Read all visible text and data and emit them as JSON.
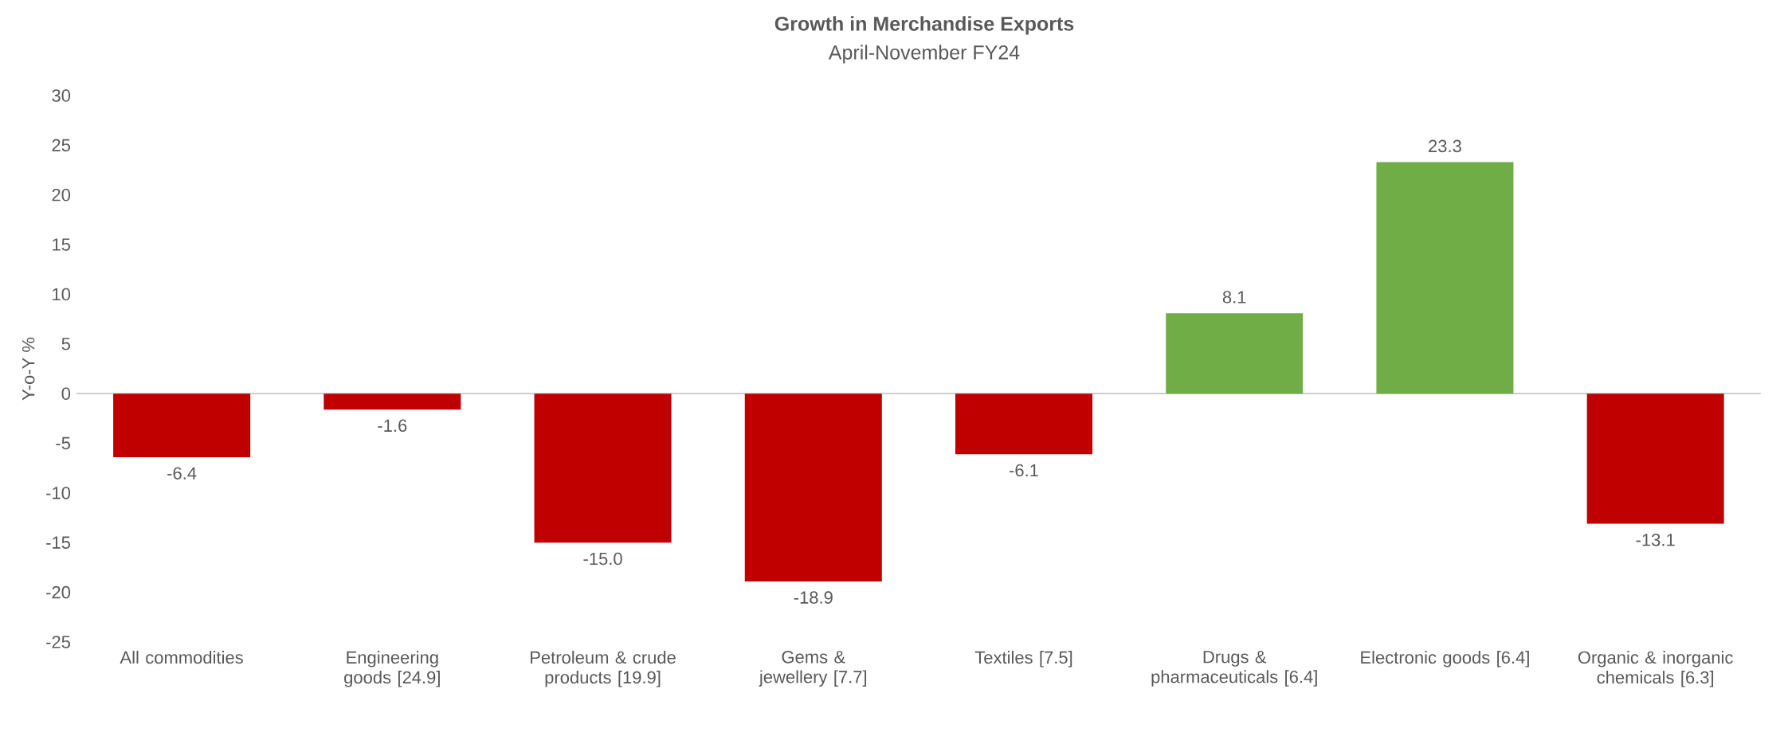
{
  "chart_data": {
    "type": "bar",
    "title": "Growth in Merchandise Exports",
    "subtitle": "April-November FY24",
    "ylabel": "Y-o-Y %",
    "categories": [
      "All commodities",
      "Engineering goods [24.9]",
      "Petroleum & crude products [19.9]",
      "Gems & jewellery [7.7]",
      "Textiles [7.5]",
      "Drugs & pharmaceuticals [6.4]",
      "Electronic goods [6.4]",
      "Organic & inorganic chemicals [6.3]"
    ],
    "values": [
      -6.4,
      -1.6,
      -15.0,
      -18.9,
      -6.1,
      8.1,
      23.3,
      -13.1
    ],
    "value_labels": [
      "-6.4",
      "-1.6",
      "-15.0",
      "-18.9",
      "-6.1",
      "8.1",
      "23.3",
      "-13.1"
    ],
    "colors": [
      "#c00000",
      "#c00000",
      "#c00000",
      "#c00000",
      "#c00000",
      "#70ad47",
      "#70ad47",
      "#c00000"
    ],
    "ylim": [
      -25,
      30
    ],
    "yticks": [
      -25,
      -20,
      -15,
      -10,
      -5,
      0,
      5,
      10,
      15,
      20,
      25,
      30
    ]
  }
}
